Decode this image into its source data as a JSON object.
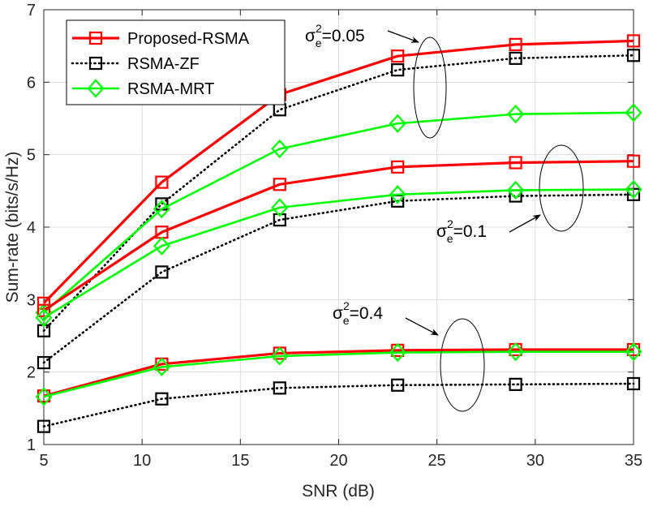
{
  "chart_data": {
    "type": "line",
    "title": "",
    "xlabel": "SNR (dB)",
    "ylabel": "Sum-rate (bits/s/Hz)",
    "xlim": [
      5,
      35
    ],
    "ylim": [
      1,
      7
    ],
    "xticks": [
      5,
      10,
      15,
      20,
      25,
      30,
      35
    ],
    "yticks": [
      1,
      2,
      3,
      4,
      5,
      6,
      7
    ],
    "grid": true,
    "legend_position": "top-left",
    "x": [
      5,
      11,
      17,
      23,
      29,
      35
    ],
    "series": [
      {
        "name": "Proposed-RSMA",
        "group": "sigma_e^2=0.05",
        "color": "#ff0000",
        "style": "solid",
        "marker": "square",
        "show_in_legend": true,
        "values": [
          2.95,
          4.62,
          5.83,
          6.36,
          6.52,
          6.57
        ]
      },
      {
        "name": "RSMA-ZF",
        "group": "sigma_e^2=0.05",
        "color": "#000000",
        "style": "dotted",
        "marker": "square",
        "show_in_legend": true,
        "values": [
          2.57,
          4.32,
          5.62,
          6.17,
          6.33,
          6.37
        ]
      },
      {
        "name": "RSMA-MRT",
        "group": "sigma_e^2=0.05",
        "color": "#00ff00",
        "style": "solid",
        "marker": "diamond",
        "show_in_legend": true,
        "values": [
          2.82,
          4.25,
          5.08,
          5.43,
          5.56,
          5.58
        ]
      },
      {
        "name": "Proposed-RSMA",
        "group": "sigma_e^2=0.1",
        "color": "#ff0000",
        "style": "solid",
        "marker": "square",
        "show_in_legend": false,
        "values": [
          2.85,
          3.93,
          4.59,
          4.83,
          4.89,
          4.91
        ]
      },
      {
        "name": "RSMA-ZF",
        "group": "sigma_e^2=0.1",
        "color": "#000000",
        "style": "dotted",
        "marker": "square",
        "show_in_legend": false,
        "values": [
          2.13,
          3.38,
          4.1,
          4.36,
          4.43,
          4.45
        ]
      },
      {
        "name": "RSMA-MRT",
        "group": "sigma_e^2=0.1",
        "color": "#00ff00",
        "style": "solid",
        "marker": "diamond",
        "show_in_legend": false,
        "values": [
          2.75,
          3.74,
          4.27,
          4.45,
          4.51,
          4.52
        ]
      },
      {
        "name": "Proposed-RSMA",
        "group": "sigma_e^2=0.4",
        "color": "#ff0000",
        "style": "solid",
        "marker": "square",
        "show_in_legend": false,
        "values": [
          1.67,
          2.11,
          2.26,
          2.3,
          2.31,
          2.31
        ]
      },
      {
        "name": "RSMA-ZF",
        "group": "sigma_e^2=0.4",
        "color": "#000000",
        "style": "dotted",
        "marker": "square",
        "show_in_legend": false,
        "values": [
          1.25,
          1.63,
          1.78,
          1.82,
          1.83,
          1.84
        ]
      },
      {
        "name": "RSMA-MRT",
        "group": "sigma_e^2=0.4",
        "color": "#00ff00",
        "style": "solid",
        "marker": "diamond",
        "show_in_legend": false,
        "values": [
          1.66,
          2.07,
          2.22,
          2.27,
          2.28,
          2.28
        ]
      }
    ],
    "annotations": [
      {
        "symbol": "σ",
        "sup": "2",
        "sub": "e",
        "value": "=0.05",
        "target": "sigma_e^2=0.05 curves"
      },
      {
        "symbol": "σ",
        "sup": "2",
        "sub": "e",
        "value": "=0.1",
        "target": "sigma_e^2=0.1 curves"
      },
      {
        "symbol": "σ",
        "sup": "2",
        "sub": "e",
        "value": "=0.4",
        "target": "sigma_e^2=0.4 curves"
      }
    ]
  }
}
